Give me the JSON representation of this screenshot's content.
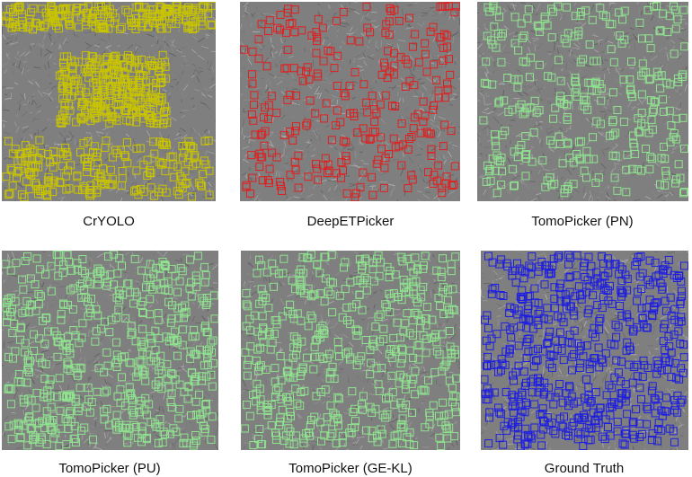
{
  "panels": [
    {
      "caption": "CrYOLO",
      "marker_color": "#c9c400",
      "density": "very high, clustered top and bottom"
    },
    {
      "caption": "DeepETPicker",
      "marker_color": "#e02020",
      "density": "medium"
    },
    {
      "caption": "TomoPicker (PN)",
      "marker_color": "#8fe38f",
      "density": "medium"
    },
    {
      "caption": "TomoPicker (PU)",
      "marker_color": "#8fe38f",
      "density": "high"
    },
    {
      "caption": "TomoPicker (GE-KL)",
      "marker_color": "#8fe38f",
      "density": "high"
    },
    {
      "caption": "Ground Truth",
      "marker_color": "#1f1fe0",
      "density": "high"
    }
  ],
  "background_color": "#7f7f7f"
}
